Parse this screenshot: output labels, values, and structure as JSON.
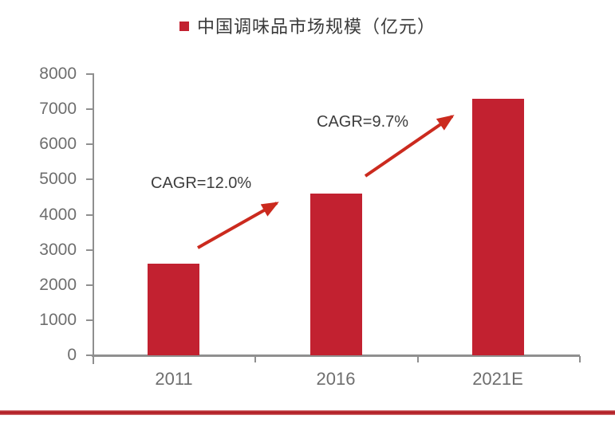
{
  "legend": {
    "label": "中国调味品市场规模（亿元）",
    "marker": "red-square"
  },
  "chart_data": {
    "type": "bar",
    "title": "中国调味品市场规模（亿元）",
    "categories": [
      "2011",
      "2016",
      "2021E"
    ],
    "values": [
      2600,
      4600,
      7300
    ],
    "series_name": "中国调味品市场规模（亿元）",
    "xlabel": "",
    "ylabel": "",
    "ylim": [
      0,
      8000
    ],
    "yticks": [
      0,
      1000,
      2000,
      3000,
      4000,
      5000,
      6000,
      7000,
      8000
    ],
    "grid": false,
    "legend_position": "top-center",
    "annotations": [
      {
        "text": "CAGR=12.0%",
        "between": [
          "2011",
          "2016"
        ]
      },
      {
        "text": "CAGR=9.7%",
        "between": [
          "2016",
          "2021E"
        ]
      }
    ]
  },
  "colors": {
    "bar": "#c22130",
    "arrow": "#cb2a1e",
    "axis": "#8f8f8f",
    "tick_label": "#6e6e6e",
    "annotation_text": "#3d3d3d",
    "footer_rule": "#b42128",
    "footer_rule_edge": "#d58585"
  }
}
